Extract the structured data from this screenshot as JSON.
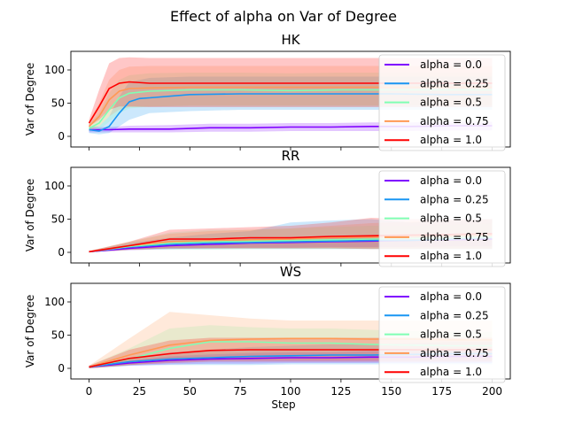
{
  "figure": {
    "suptitle": "Effect of alpha on  Var of Degree",
    "xlabel": "Step"
  },
  "chart_data": [
    {
      "type": "line",
      "title": "HK",
      "xlabel": "",
      "ylabel": "Var of Degree",
      "xlim": [
        -9,
        209
      ],
      "ylim": [
        -16,
        128
      ],
      "xticks": [
        0,
        25,
        50,
        75,
        100,
        125,
        150,
        175,
        200
      ],
      "yticks": [
        0,
        50,
        100
      ],
      "legend_position": "right",
      "series": [
        {
          "name": "alpha = 0.0",
          "color": "#7f00ff",
          "x": [
            0,
            10,
            20,
            40,
            60,
            80,
            100,
            120,
            140,
            160,
            180,
            200
          ],
          "y": [
            10,
            10,
            11,
            11,
            13,
            13,
            14,
            14,
            15,
            15,
            16,
            16
          ],
          "band_lower": [
            6,
            6,
            6,
            6,
            7,
            7,
            8,
            8,
            8,
            8,
            9,
            9
          ],
          "band_upper": [
            14,
            14,
            16,
            17,
            19,
            19,
            20,
            20,
            21,
            21,
            22,
            22
          ]
        },
        {
          "name": "alpha = 0.25",
          "color": "#1996f3",
          "x": [
            0,
            5,
            10,
            15,
            20,
            25,
            30,
            50,
            75,
            100,
            125,
            150,
            175,
            200
          ],
          "y": [
            10,
            8,
            15,
            35,
            52,
            57,
            58,
            63,
            64,
            64,
            64,
            64,
            63,
            63
          ],
          "band_lower": [
            5,
            3,
            5,
            15,
            25,
            30,
            35,
            38,
            40,
            40,
            40,
            40,
            40,
            40
          ],
          "band_upper": [
            15,
            15,
            30,
            60,
            82,
            85,
            88,
            90,
            90,
            90,
            90,
            90,
            90,
            90
          ]
        },
        {
          "name": "alpha = 0.5",
          "color": "#80ffb4",
          "x": [
            0,
            5,
            10,
            15,
            20,
            30,
            50,
            75,
            100,
            125,
            150,
            175,
            200
          ],
          "y": [
            12,
            20,
            40,
            58,
            65,
            68,
            70,
            70,
            69,
            70,
            70,
            70,
            70
          ],
          "band_lower": [
            8,
            10,
            22,
            35,
            42,
            45,
            46,
            46,
            46,
            46,
            46,
            46,
            46
          ],
          "band_upper": [
            18,
            35,
            65,
            85,
            92,
            95,
            96,
            96,
            95,
            96,
            96,
            96,
            96
          ]
        },
        {
          "name": "alpha = 0.75",
          "color": "#ff9955",
          "x": [
            0,
            5,
            10,
            15,
            20,
            30,
            50,
            75,
            100,
            125,
            150,
            175,
            200
          ],
          "y": [
            15,
            30,
            55,
            68,
            72,
            73,
            74,
            74,
            74,
            74,
            74,
            74,
            74
          ],
          "band_lower": [
            8,
            15,
            30,
            40,
            44,
            45,
            46,
            46,
            46,
            46,
            46,
            46,
            46
          ],
          "band_upper": [
            22,
            50,
            85,
            100,
            105,
            106,
            106,
            106,
            106,
            106,
            106,
            106,
            106
          ]
        },
        {
          "name": "alpha = 1.0",
          "color": "#ff0000",
          "x": [
            0,
            5,
            10,
            15,
            20,
            30,
            50,
            75,
            100,
            125,
            150,
            175,
            200
          ],
          "y": [
            20,
            45,
            72,
            80,
            82,
            80,
            80,
            80,
            80,
            80,
            80,
            80,
            80
          ],
          "band_lower": [
            15,
            25,
            40,
            45,
            45,
            44,
            44,
            44,
            44,
            44,
            44,
            44,
            44
          ],
          "band_upper": [
            25,
            70,
            110,
            118,
            119,
            118,
            118,
            118,
            118,
            118,
            118,
            118,
            118
          ]
        }
      ]
    },
    {
      "type": "line",
      "title": "RR",
      "xlabel": "",
      "ylabel": "Var of Degree",
      "xlim": [
        -9,
        209
      ],
      "ylim": [
        -16,
        128
      ],
      "xticks": [
        0,
        25,
        50,
        75,
        100,
        125,
        150,
        175,
        200
      ],
      "yticks": [
        0,
        50,
        100
      ],
      "legend_position": "right",
      "series": [
        {
          "name": "alpha = 0.0",
          "color": "#7f00ff",
          "x": [
            0,
            20,
            40,
            60,
            80,
            100,
            120,
            140,
            160,
            180,
            200
          ],
          "y": [
            1,
            6,
            10,
            12,
            14,
            15,
            16,
            17,
            18,
            19,
            20
          ],
          "band_lower": [
            0,
            3,
            5,
            6,
            7,
            7,
            8,
            8,
            8,
            9,
            9
          ],
          "band_upper": [
            2,
            9,
            15,
            18,
            21,
            23,
            24,
            26,
            27,
            28,
            30
          ]
        },
        {
          "name": "alpha = 0.25",
          "color": "#1996f3",
          "x": [
            0,
            20,
            40,
            60,
            80,
            100,
            120,
            140,
            160,
            180,
            200
          ],
          "y": [
            1,
            8,
            12,
            14,
            15,
            16,
            17,
            18,
            18,
            20,
            22
          ],
          "band_lower": [
            0,
            4,
            5,
            5,
            5,
            5,
            5,
            5,
            5,
            5,
            5
          ],
          "band_upper": [
            2,
            14,
            22,
            28,
            32,
            45,
            48,
            50,
            45,
            48,
            50
          ]
        },
        {
          "name": "alpha = 0.5",
          "color": "#80ffb4",
          "x": [
            0,
            20,
            40,
            60,
            80,
            100,
            120,
            140,
            160,
            180,
            200
          ],
          "y": [
            1,
            9,
            14,
            16,
            17,
            18,
            19,
            20,
            21,
            22,
            23
          ],
          "band_lower": [
            0,
            4,
            4,
            4,
            5,
            5,
            5,
            5,
            5,
            5,
            5
          ],
          "band_upper": [
            2,
            16,
            30,
            34,
            34,
            36,
            38,
            40,
            40,
            42,
            44
          ]
        },
        {
          "name": "alpha = 0.75",
          "color": "#ff9955",
          "x": [
            0,
            20,
            40,
            60,
            80,
            100,
            120,
            140,
            160,
            180,
            200
          ],
          "y": [
            1,
            10,
            16,
            18,
            19,
            20,
            22,
            23,
            24,
            25,
            26
          ],
          "band_lower": [
            0,
            4,
            6,
            6,
            6,
            6,
            6,
            6,
            6,
            6,
            6
          ],
          "band_upper": [
            2,
            16,
            28,
            32,
            34,
            36,
            40,
            44,
            46,
            48,
            50
          ]
        },
        {
          "name": "alpha = 1.0",
          "color": "#ff0000",
          "x": [
            0,
            20,
            40,
            60,
            80,
            100,
            120,
            140,
            160,
            180,
            200
          ],
          "y": [
            1,
            10,
            20,
            20,
            22,
            22,
            24,
            25,
            26,
            27,
            28
          ],
          "band_lower": [
            0,
            4,
            6,
            6,
            6,
            6,
            6,
            5,
            5,
            5,
            5
          ],
          "band_upper": [
            2,
            16,
            34,
            36,
            38,
            40,
            45,
            52,
            50,
            50,
            50
          ]
        }
      ]
    },
    {
      "type": "line",
      "title": "WS",
      "xlabel": "Step",
      "ylabel": "Var of Degree",
      "xlim": [
        -9,
        209
      ],
      "ylim": [
        -16,
        128
      ],
      "xticks": [
        0,
        25,
        50,
        75,
        100,
        125,
        150,
        175,
        200
      ],
      "xticklabels": [
        "0",
        "25",
        "50",
        "75",
        "100",
        "125",
        "150",
        "175",
        "200"
      ],
      "yticks": [
        0,
        50,
        100
      ],
      "legend_position": "right",
      "series": [
        {
          "name": "alpha = 0.0",
          "color": "#7f00ff",
          "x": [
            0,
            20,
            40,
            60,
            80,
            100,
            120,
            140,
            160,
            180,
            200
          ],
          "y": [
            2,
            8,
            12,
            14,
            15,
            16,
            16,
            17,
            17,
            18,
            18
          ],
          "band_lower": [
            0,
            4,
            6,
            7,
            7,
            8,
            8,
            8,
            8,
            8,
            8
          ],
          "band_upper": [
            4,
            12,
            18,
            21,
            23,
            24,
            24,
            26,
            26,
            28,
            28
          ]
        },
        {
          "name": "alpha = 0.25",
          "color": "#1996f3",
          "x": [
            0,
            20,
            40,
            60,
            80,
            100,
            120,
            140,
            160,
            180,
            200
          ],
          "y": [
            2,
            10,
            14,
            16,
            18,
            19,
            20,
            20,
            21,
            22,
            22
          ],
          "band_lower": [
            0,
            4,
            5,
            5,
            5,
            6,
            6,
            6,
            6,
            6,
            6
          ],
          "band_upper": [
            4,
            16,
            24,
            28,
            32,
            34,
            36,
            36,
            38,
            40,
            40
          ]
        },
        {
          "name": "alpha = 0.5",
          "color": "#80ffb4",
          "x": [
            0,
            20,
            40,
            60,
            80,
            100,
            120,
            140,
            160,
            180,
            200
          ],
          "y": [
            2,
            14,
            30,
            40,
            40,
            38,
            38,
            36,
            35,
            34,
            34
          ],
          "band_lower": [
            0,
            5,
            10,
            15,
            18,
            18,
            18,
            18,
            18,
            18,
            18
          ],
          "band_upper": [
            4,
            30,
            60,
            65,
            62,
            60,
            60,
            58,
            56,
            55,
            55
          ]
        },
        {
          "name": "alpha = 0.75",
          "color": "#ff9955",
          "x": [
            0,
            20,
            40,
            60,
            80,
            100,
            120,
            140,
            160,
            180,
            200
          ],
          "y": [
            2,
            20,
            35,
            42,
            44,
            45,
            45,
            44,
            44,
            43,
            43
          ],
          "band_lower": [
            0,
            5,
            10,
            12,
            12,
            12,
            12,
            12,
            12,
            12,
            12
          ],
          "band_upper": [
            4,
            45,
            85,
            80,
            75,
            72,
            72,
            72,
            72,
            72,
            72
          ]
        },
        {
          "name": "alpha = 1.0",
          "color": "#ff0000",
          "x": [
            0,
            20,
            40,
            60,
            80,
            100,
            120,
            140,
            160,
            180,
            200
          ],
          "y": [
            2,
            15,
            22,
            27,
            28,
            28,
            28,
            28,
            28,
            28,
            28
          ],
          "band_lower": [
            0,
            5,
            8,
            10,
            10,
            10,
            10,
            10,
            10,
            10,
            10
          ],
          "band_upper": [
            4,
            28,
            42,
            46,
            46,
            46,
            46,
            46,
            46,
            46,
            46
          ]
        }
      ]
    }
  ]
}
